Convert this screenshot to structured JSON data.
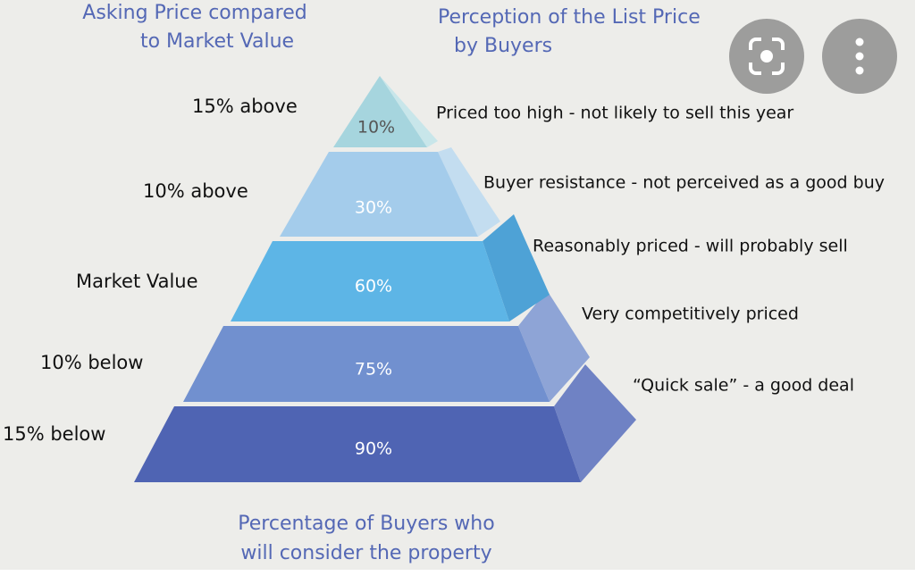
{
  "left_heading": [
    "Asking Price compared",
    "to Market Value"
  ],
  "right_heading": [
    "Perception of the List Price",
    "by Buyers"
  ],
  "levels": [
    {
      "asking": "15% above",
      "percent": "10%",
      "perception": "Priced too high - not likely to sell this year"
    },
    {
      "asking": "10% above",
      "percent": "30%",
      "perception": "Buyer resistance - not perceived as a good buy"
    },
    {
      "asking": "Market Value",
      "percent": "60%",
      "perception": "Reasonably priced - will probably sell"
    },
    {
      "asking": "10% below",
      "percent": "75%",
      "perception": "Very competitively priced"
    },
    {
      "asking": "15% below",
      "percent": "90%",
      "perception": "“Quick sale” - a good deal"
    }
  ],
  "footer": [
    "Percentage of Buyers who",
    "will consider the property"
  ]
}
